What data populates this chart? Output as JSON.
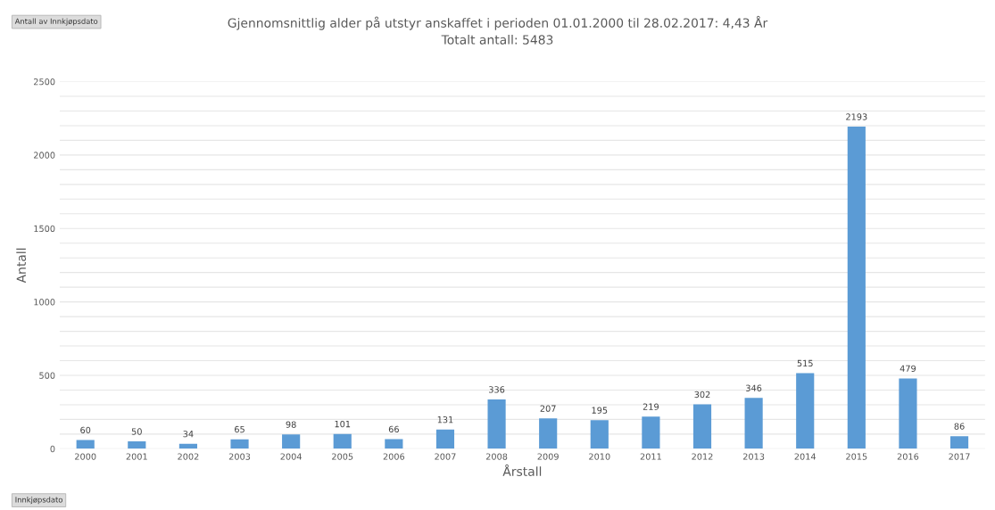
{
  "chart_data": {
    "type": "bar",
    "title": "Gjennomsnittlig alder på utstyr anskaffet i perioden 01.01.2000 til 28.02.2017: 4,43 År",
    "subtitle": "Totalt antall: 5483",
    "xlabel": "Årstall",
    "ylabel": "Antall",
    "categories": [
      "2000",
      "2001",
      "2002",
      "2003",
      "2004",
      "2005",
      "2006",
      "2007",
      "2008",
      "2009",
      "2010",
      "2011",
      "2012",
      "2013",
      "2014",
      "2015",
      "2016",
      "2017"
    ],
    "values": [
      60,
      50,
      34,
      65,
      98,
      101,
      66,
      131,
      336,
      207,
      195,
      219,
      302,
      346,
      515,
      2193,
      479,
      86
    ],
    "color": "#5b9bd5",
    "ylim": [
      0,
      2500
    ],
    "yticks": [
      0,
      {
        "value": 100,
        "label": null
      },
      {
        "value": 200,
        "label": null
      },
      {
        "value": 300,
        "label": null
      },
      {
        "value": 400,
        "label": null
      },
      500,
      {
        "value": 600,
        "label": null
      },
      {
        "value": 700,
        "label": null
      },
      {
        "value": 800,
        "label": null
      },
      {
        "value": 900,
        "label": null
      },
      1000,
      {
        "value": 1100,
        "label": null
      },
      {
        "value": 1200,
        "label": null
      },
      {
        "value": 1300,
        "label": null
      },
      {
        "value": 1400,
        "label": null
      },
      1500,
      {
        "value": 1600,
        "label": null
      },
      {
        "value": 1700,
        "label": null
      },
      {
        "value": 1800,
        "label": null
      },
      {
        "value": 1900,
        "label": null
      },
      2000,
      {
        "value": 2100,
        "label": null
      },
      {
        "value": 2200,
        "label": null
      },
      {
        "value": 2300,
        "label": null
      },
      {
        "value": 2400,
        "label": null
      },
      2500
    ],
    "grid": "y",
    "data_labels": true,
    "annotations": [
      "Antall av Innkjøpsdato",
      "Innkjøpsdato"
    ]
  }
}
